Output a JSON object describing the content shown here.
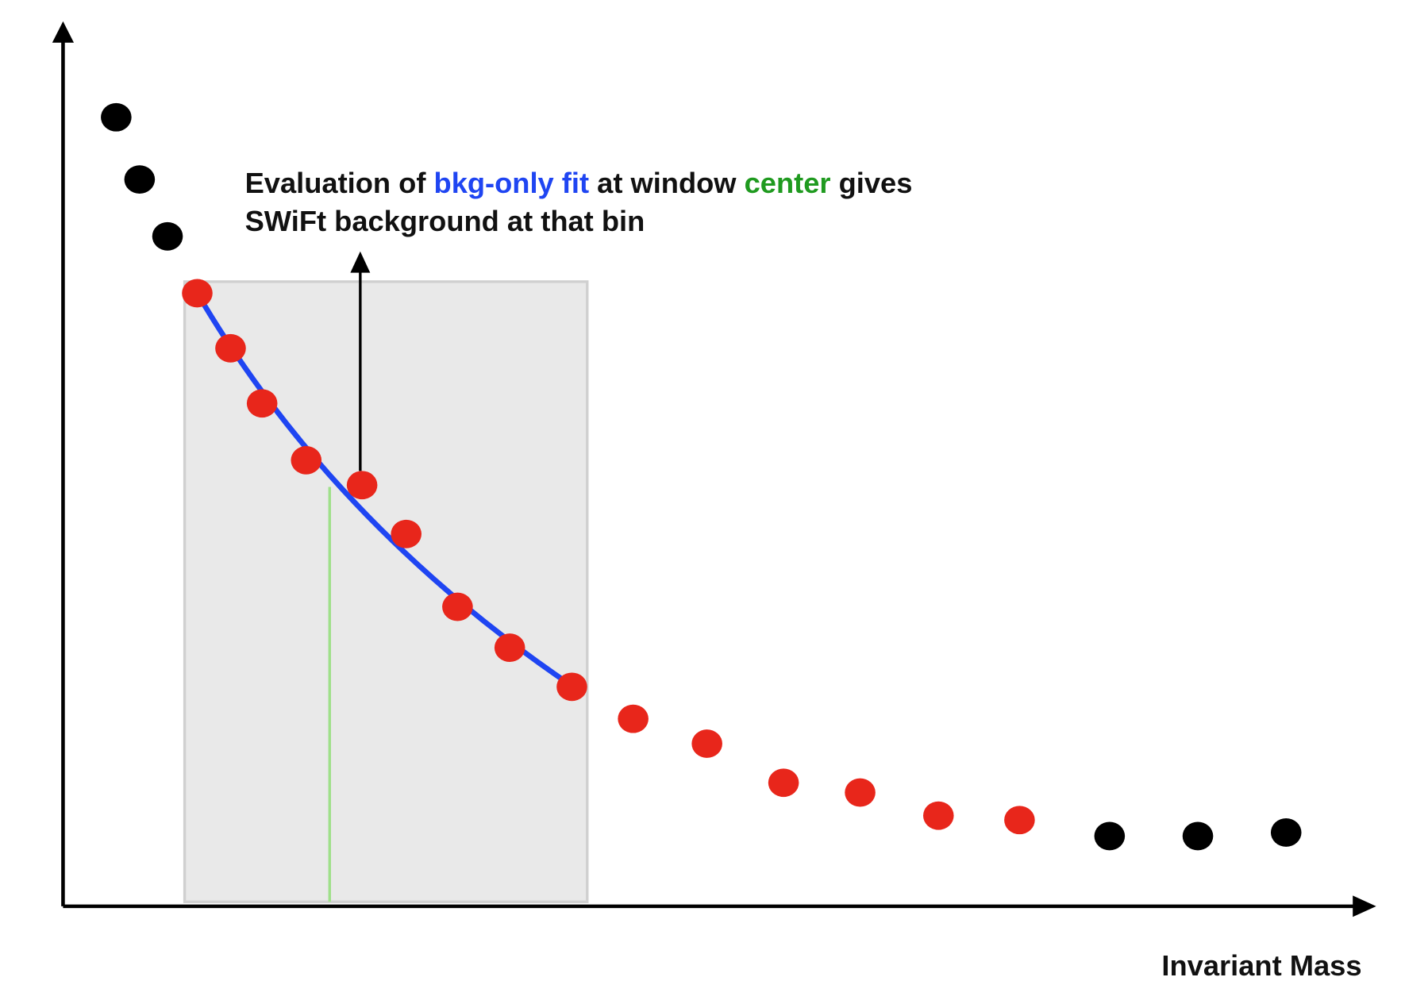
{
  "annotation": {
    "line1": [
      "Evaluation of",
      "bkg-only fit",
      "at window",
      "center",
      "gives"
    ],
    "line2": "SWiFt background at that bin"
  },
  "axis_label": "Invariant Mass"
}
